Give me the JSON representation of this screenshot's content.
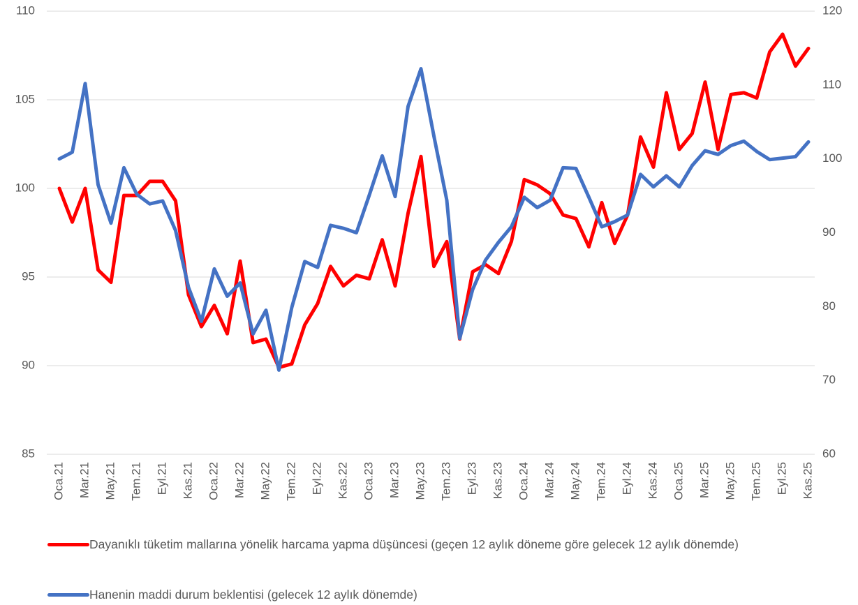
{
  "chart_data": {
    "type": "line",
    "categories": [
      "Oca.21",
      null,
      "Mar.21",
      null,
      "May.21",
      null,
      "Tem.21",
      null,
      "Eyl.21",
      null,
      "Kas.21",
      null,
      "Oca.22",
      null,
      "Mar.22",
      null,
      "May.22",
      null,
      "Tem.22",
      null,
      "Eyl.22",
      null,
      "Kas.22",
      null,
      "Oca.23",
      null,
      "Mar.23",
      null,
      "May.23",
      null,
      "Tem.23",
      null,
      "Eyl.23",
      null,
      "Kas.23",
      null,
      "Oca.24",
      null,
      "Mar.24",
      null,
      "May.24",
      null,
      "Tem.24",
      null,
      "Eyl.24",
      null,
      "Kas.24",
      null,
      "Oca.25",
      null,
      "Mar.25",
      null,
      "May.25",
      null,
      "Tem.25",
      null,
      "Eyl.25",
      null,
      "Kas.25"
    ],
    "series": [
      {
        "name": "Dayanıklı tüketim mallarına yönelik harcama yapma düşüncesi (geçen 12 aylık döneme göre gelecek 12 aylık dönemde)",
        "color": "#ff0000",
        "axis": "y",
        "values": [
          100.0,
          98.1,
          100.0,
          95.4,
          94.7,
          99.6,
          99.6,
          100.4,
          100.4,
          99.3,
          94.0,
          92.2,
          93.4,
          91.8,
          95.9,
          91.3,
          91.5,
          89.9,
          90.1,
          92.3,
          93.5,
          95.6,
          94.5,
          95.1,
          94.9,
          97.1,
          94.5,
          98.6,
          101.8,
          95.6,
          97.0,
          91.5,
          95.3,
          95.7,
          95.2,
          97.0,
          100.5,
          100.2,
          99.7,
          98.5,
          98.3,
          96.7,
          99.2,
          96.9,
          98.5,
          102.9,
          101.2,
          105.4,
          102.2,
          103.1,
          106.0,
          102.2,
          105.3,
          105.4,
          105.1,
          107.7,
          108.7,
          106.9,
          107.9
        ]
      },
      {
        "name": "Hanenin maddi durum beklentisi (gelecek 12 aylık dönemde)",
        "color": "#4472c4",
        "axis": "y2",
        "values": [
          100.0,
          100.9,
          110.2,
          96.5,
          91.3,
          98.8,
          95.2,
          93.9,
          94.3,
          90.3,
          82.6,
          78.0,
          85.1,
          81.4,
          83.2,
          76.3,
          79.5,
          71.4,
          79.9,
          86.1,
          85.3,
          91.0,
          90.6,
          90.0,
          95.1,
          100.4,
          94.9,
          107.1,
          112.2,
          103.1,
          94.4,
          75.7,
          82.3,
          86.3,
          88.7,
          90.8,
          94.8,
          93.4,
          94.4,
          98.8,
          98.7,
          94.8,
          90.8,
          91.5,
          92.4,
          97.9,
          96.2,
          97.7,
          96.2,
          99.1,
          101.1,
          100.6,
          101.8,
          102.4,
          101.0,
          99.9,
          100.1,
          100.3,
          102.3
        ]
      }
    ],
    "ylim": [
      85,
      110
    ],
    "yticks": [
      85,
      90,
      95,
      100,
      105,
      110
    ],
    "y2lim": [
      60,
      120
    ],
    "y2ticks": [
      60,
      70,
      80,
      90,
      100,
      110,
      120
    ],
    "grid": true,
    "legend": "bottom"
  }
}
